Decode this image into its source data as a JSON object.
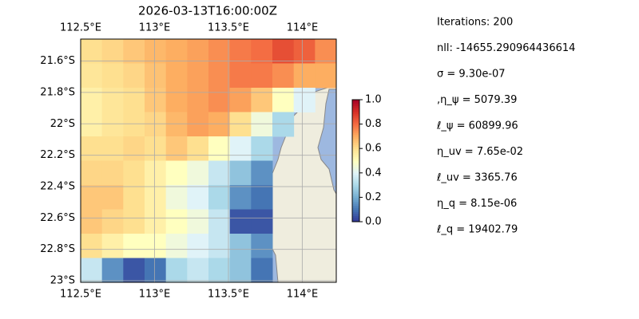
{
  "chart_data": {
    "type": "heatmap",
    "title": "2026-03-13T16:00:00Z",
    "xlim": [
      112.5,
      114.23
    ],
    "ylim": [
      -23.01,
      -21.46
    ],
    "xticks": [
      {
        "value": 112.5,
        "label": "112.5°E"
      },
      {
        "value": 113,
        "label": "113°E"
      },
      {
        "value": 113.5,
        "label": "113.5°E"
      },
      {
        "value": 114,
        "label": "114°E"
      }
    ],
    "yticks": [
      {
        "value": -21.6,
        "label": "21.6°S"
      },
      {
        "value": -21.8,
        "label": "21.8°S"
      },
      {
        "value": -22,
        "label": "22°S"
      },
      {
        "value": -22.2,
        "label": "22.2°S"
      },
      {
        "value": -22.4,
        "label": "22.4°S"
      },
      {
        "value": -22.6,
        "label": "22.6°S"
      },
      {
        "value": -22.8,
        "label": "22.8°S"
      },
      {
        "value": -23,
        "label": "23°S"
      }
    ],
    "grid": true,
    "colormap": [
      "#313695",
      "#4575b4",
      "#74add1",
      "#abd9e9",
      "#e0f3f8",
      "#ffffbf",
      "#fee090",
      "#fdae61",
      "#f46d43",
      "#d73027",
      "#a50026"
    ],
    "clim": [
      0,
      1
    ],
    "cticks": [
      {
        "value": 0,
        "label": "0.0"
      },
      {
        "value": 0.2,
        "label": "0.2"
      },
      {
        "value": 0.4,
        "label": "0.4"
      },
      {
        "value": 0.6,
        "label": "0.6"
      },
      {
        "value": 0.8,
        "label": "0.8"
      },
      {
        "value": 1,
        "label": "1.0"
      }
    ],
    "values": [
      [
        0.6,
        0.62,
        0.65,
        0.68,
        0.7,
        0.72,
        0.75,
        0.78,
        0.8,
        0.85,
        0.82,
        0.75
      ],
      [
        0.58,
        0.6,
        0.62,
        0.66,
        0.7,
        0.72,
        0.75,
        0.78,
        0.78,
        0.75,
        0.7,
        0.7
      ],
      [
        0.55,
        0.58,
        0.6,
        0.65,
        0.7,
        0.72,
        0.75,
        0.72,
        0.65,
        0.5,
        0.4,
        null
      ],
      [
        0.55,
        0.58,
        0.6,
        0.62,
        0.68,
        0.72,
        0.7,
        0.6,
        0.45,
        0.3,
        null,
        null
      ],
      [
        0.6,
        0.6,
        0.62,
        0.6,
        0.65,
        0.6,
        0.5,
        0.4,
        0.3,
        null,
        null,
        null
      ],
      [
        0.62,
        0.62,
        0.6,
        0.55,
        0.5,
        0.45,
        0.35,
        0.25,
        0.15,
        null,
        null,
        null
      ],
      [
        0.65,
        0.65,
        0.6,
        0.55,
        0.45,
        0.4,
        0.3,
        0.15,
        0.1,
        null,
        null,
        null
      ],
      [
        0.65,
        0.62,
        0.6,
        0.55,
        0.5,
        0.45,
        0.35,
        0.05,
        0.05,
        null,
        null,
        null
      ],
      [
        0.6,
        0.55,
        0.5,
        0.5,
        0.45,
        0.4,
        0.35,
        0.25,
        0.15,
        null,
        null,
        null
      ],
      [
        0.35,
        0.15,
        0.05,
        0.1,
        0.3,
        0.35,
        0.3,
        0.25,
        0.1,
        null,
        null,
        null
      ]
    ]
  },
  "info": [
    "Iterations: 200",
    "nll: -14655.290964436614",
    "σ = 9.30e-07",
    ",η_ψ = 5079.39",
    "ℓ_ψ = 60899.96",
    "η_uv = 7.65e-02",
    "ℓ_uv = 3365.76",
    "η_q = 8.15e-06",
    "ℓ_q = 19402.79"
  ]
}
